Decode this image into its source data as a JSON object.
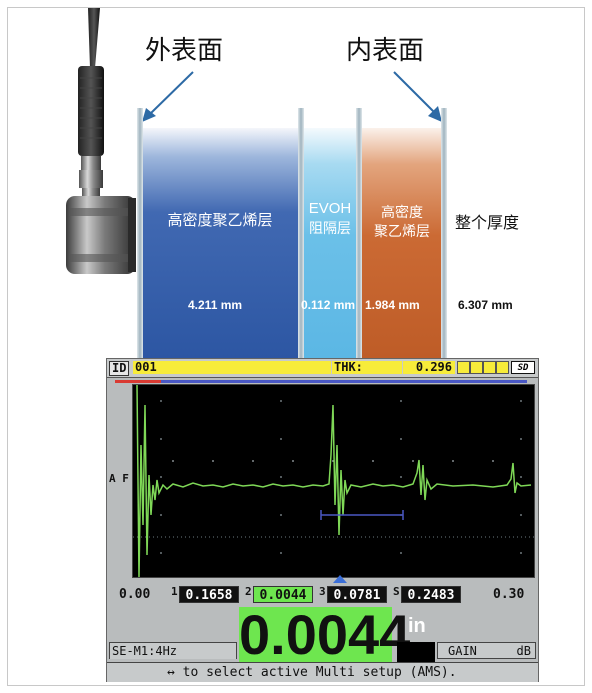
{
  "labels": {
    "outer_surface": "外表面",
    "inner_surface": "内表面"
  },
  "layers": [
    {
      "name": "高密度聚乙烯层",
      "thickness": "4.211 mm",
      "color": "#3b64ad"
    },
    {
      "name_line1": "EVOH",
      "name_line2": "阻隔层",
      "thickness": "0.112 mm",
      "color": "#69bde6"
    },
    {
      "name_line1": "高密度",
      "name_line2": "聚乙烯层",
      "thickness": "1.984 mm",
      "color": "#c4622b"
    }
  ],
  "total": {
    "label": "整个厚度",
    "value": "6.307 mm"
  },
  "device": {
    "id_label": "ID",
    "id_value": "001",
    "thk_label": "THK:",
    "thk_value": "0.296",
    "sd_icon": "SD",
    "af_label": "A F",
    "range_start": "0.00",
    "range_end": "0.30",
    "m1_index": "1",
    "m1_value": "0.1658",
    "m2_index": "2",
    "m2_value": "0.0044",
    "m3_index": "3",
    "m3_value": "0.0781",
    "sum_index": "S",
    "sum_value": "0.2483",
    "reading": "0.0044",
    "unit": "in",
    "setup": "SE-M1:4Hz",
    "gain_label": "GAIN",
    "gain_unit": "dB",
    "help_text": "↔ to select active Multi setup (AMS).",
    "colors": {
      "highlight_yellow": "#f7ec3a",
      "reading_green": "#6ee64f",
      "waveform_green": "#7fd857",
      "gate_red": "#d93a32",
      "gate_blue": "#4a58c4"
    }
  }
}
